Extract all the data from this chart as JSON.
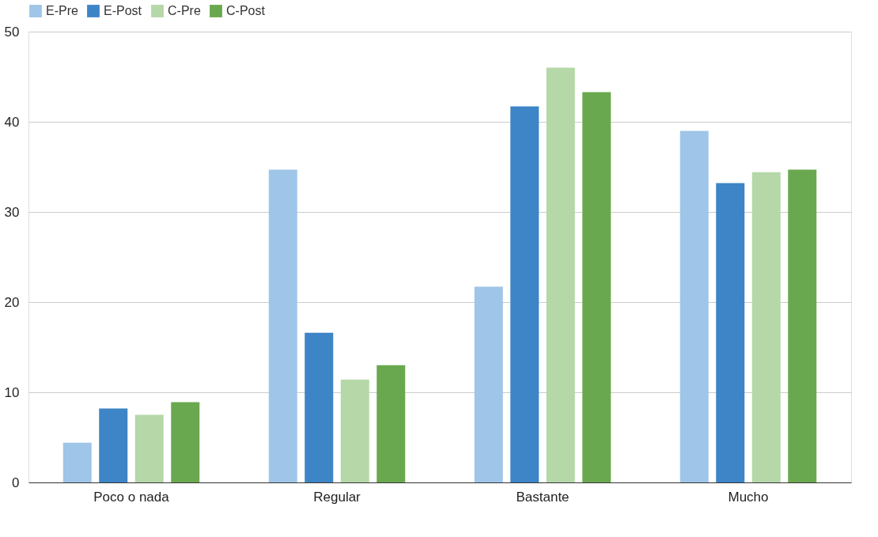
{
  "chart_data": {
    "type": "bar",
    "categories": [
      "Poco o nada",
      "Regular",
      "Bastante",
      "Mucho"
    ],
    "series": [
      {
        "name": "E-Pre",
        "color": "#9fc5e8",
        "values": [
          4.4,
          34.7,
          21.7,
          39.0
        ]
      },
      {
        "name": "E-Post",
        "color": "#3d85c6",
        "values": [
          8.2,
          16.6,
          41.7,
          33.2
        ]
      },
      {
        "name": "C-Pre",
        "color": "#b6d7a8",
        "values": [
          7.5,
          11.4,
          46.0,
          34.4
        ]
      },
      {
        "name": "C-Post",
        "color": "#6aa84f",
        "values": [
          8.9,
          13.0,
          43.3,
          34.7
        ]
      }
    ],
    "ylim": [
      0,
      50
    ],
    "yticks": [
      0,
      10,
      20,
      30,
      40,
      50
    ],
    "grid": "y",
    "legend": "top"
  }
}
